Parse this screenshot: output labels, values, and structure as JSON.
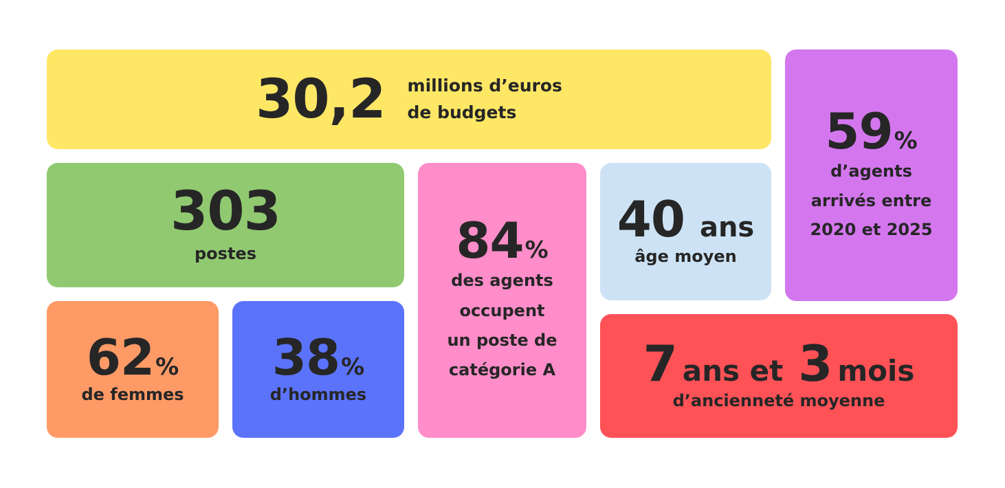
{
  "budget": {
    "value": "30,2",
    "label_line1": "millions d’euros",
    "label_line2": "de budgets",
    "color": "#ffe766"
  },
  "postes": {
    "value": "303",
    "label": "postes",
    "color": "#91c971"
  },
  "femmes": {
    "value": "62",
    "unit": "%",
    "label": "de femmes",
    "color": "#fe9a66"
  },
  "hommes": {
    "value": "38",
    "unit": "%",
    "label": "d’hommes",
    "color": "#5b73fb"
  },
  "categorie_a": {
    "value": "84",
    "unit": "%",
    "label_lines": [
      "des agents",
      "occupent",
      "un poste de",
      "catégorie A"
    ],
    "color": "#fe8dc9"
  },
  "age": {
    "value": "40",
    "unit": "ans",
    "label": "âge moyen",
    "color": "#cde3f5"
  },
  "arrives": {
    "value": "59",
    "unit": "%",
    "label_lines": [
      "d’agents",
      "arrivés entre",
      "2020 et 2025"
    ],
    "color": "#d477ef"
  },
  "anciennete": {
    "years_value": "7",
    "years_unit": "ans et",
    "months_value": "3",
    "months_unit": "mois",
    "label": "d’ancienneté moyenne",
    "color": "#fe5257"
  }
}
